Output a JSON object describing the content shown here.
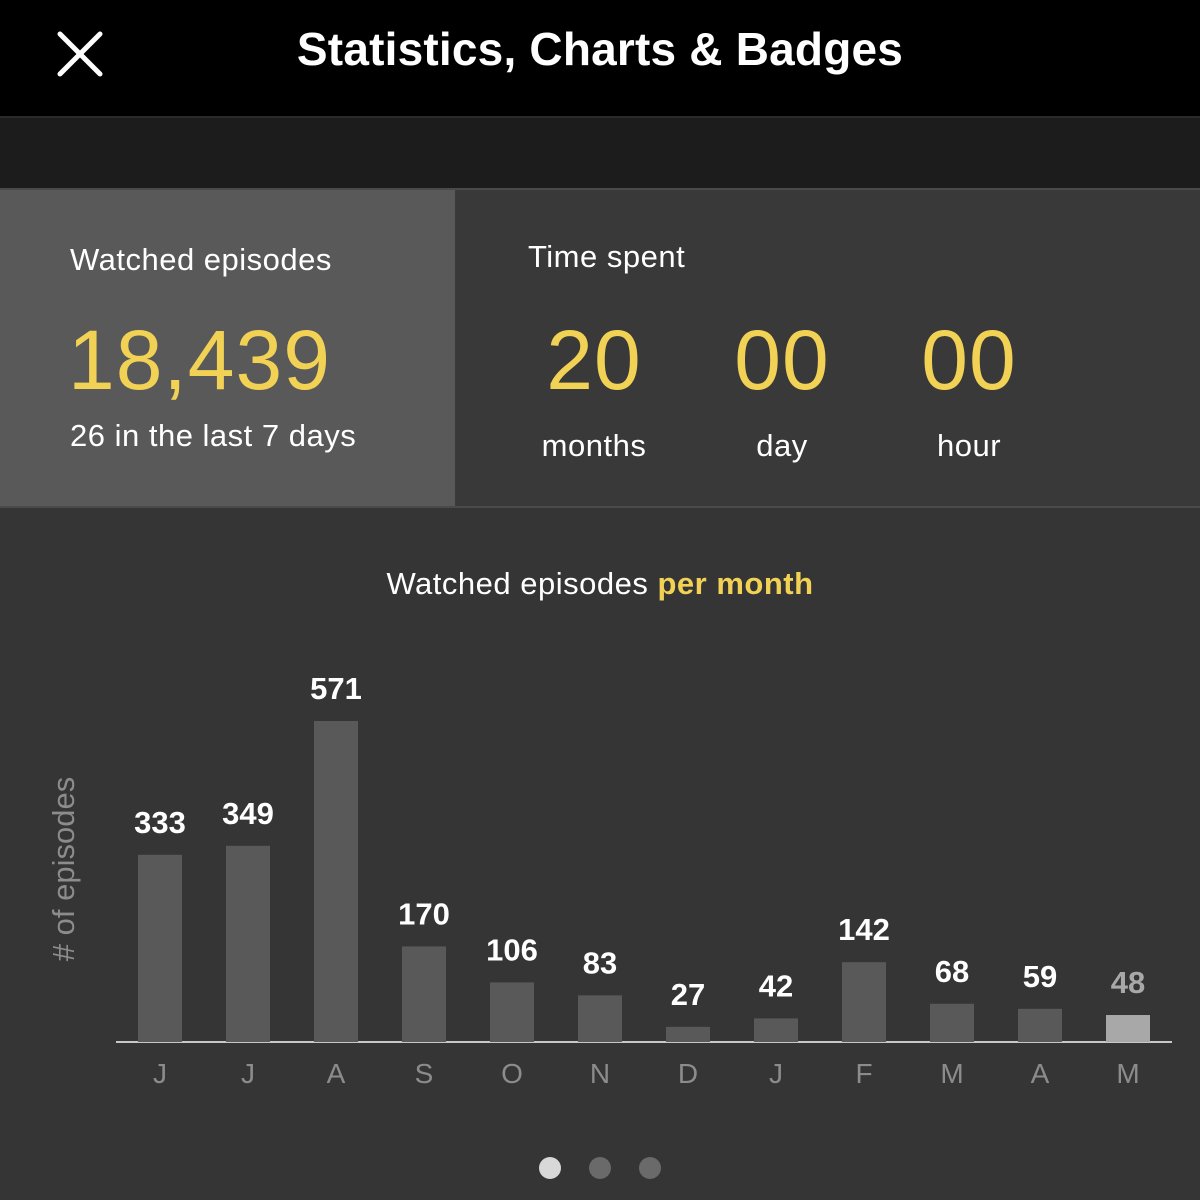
{
  "header": {
    "title": "Statistics, Charts & Badges",
    "close_icon": "close-icon"
  },
  "episodes_panel": {
    "label": "Watched episodes",
    "count": "18,439",
    "recent": "26 in the last 7 days"
  },
  "time_panel": {
    "label": "Time spent",
    "units": [
      {
        "value": "20",
        "label": "months"
      },
      {
        "value": "00",
        "label": "day"
      },
      {
        "value": "00",
        "label": "hour"
      }
    ]
  },
  "chart_section": {
    "title_prefix": "Watched episodes",
    "title_highlight": "per month"
  },
  "colors": {
    "accent": "#f2d255",
    "bar": "#595959",
    "bar_current": "#a8a8a8",
    "label_current": "#a8a8a8",
    "axis_label": "#8c8c8c"
  },
  "chart_data": {
    "type": "bar",
    "categories": [
      "J",
      "J",
      "A",
      "S",
      "O",
      "N",
      "D",
      "J",
      "F",
      "M",
      "A",
      "M"
    ],
    "values": [
      333,
      349,
      571,
      170,
      106,
      83,
      27,
      42,
      142,
      68,
      59,
      48
    ],
    "ylabel": "# of episodes",
    "xlabel": "",
    "highlight_index": 11,
    "ylim": [
      0,
      571
    ],
    "grid": false
  },
  "pager": {
    "count": 3,
    "active": 0
  }
}
